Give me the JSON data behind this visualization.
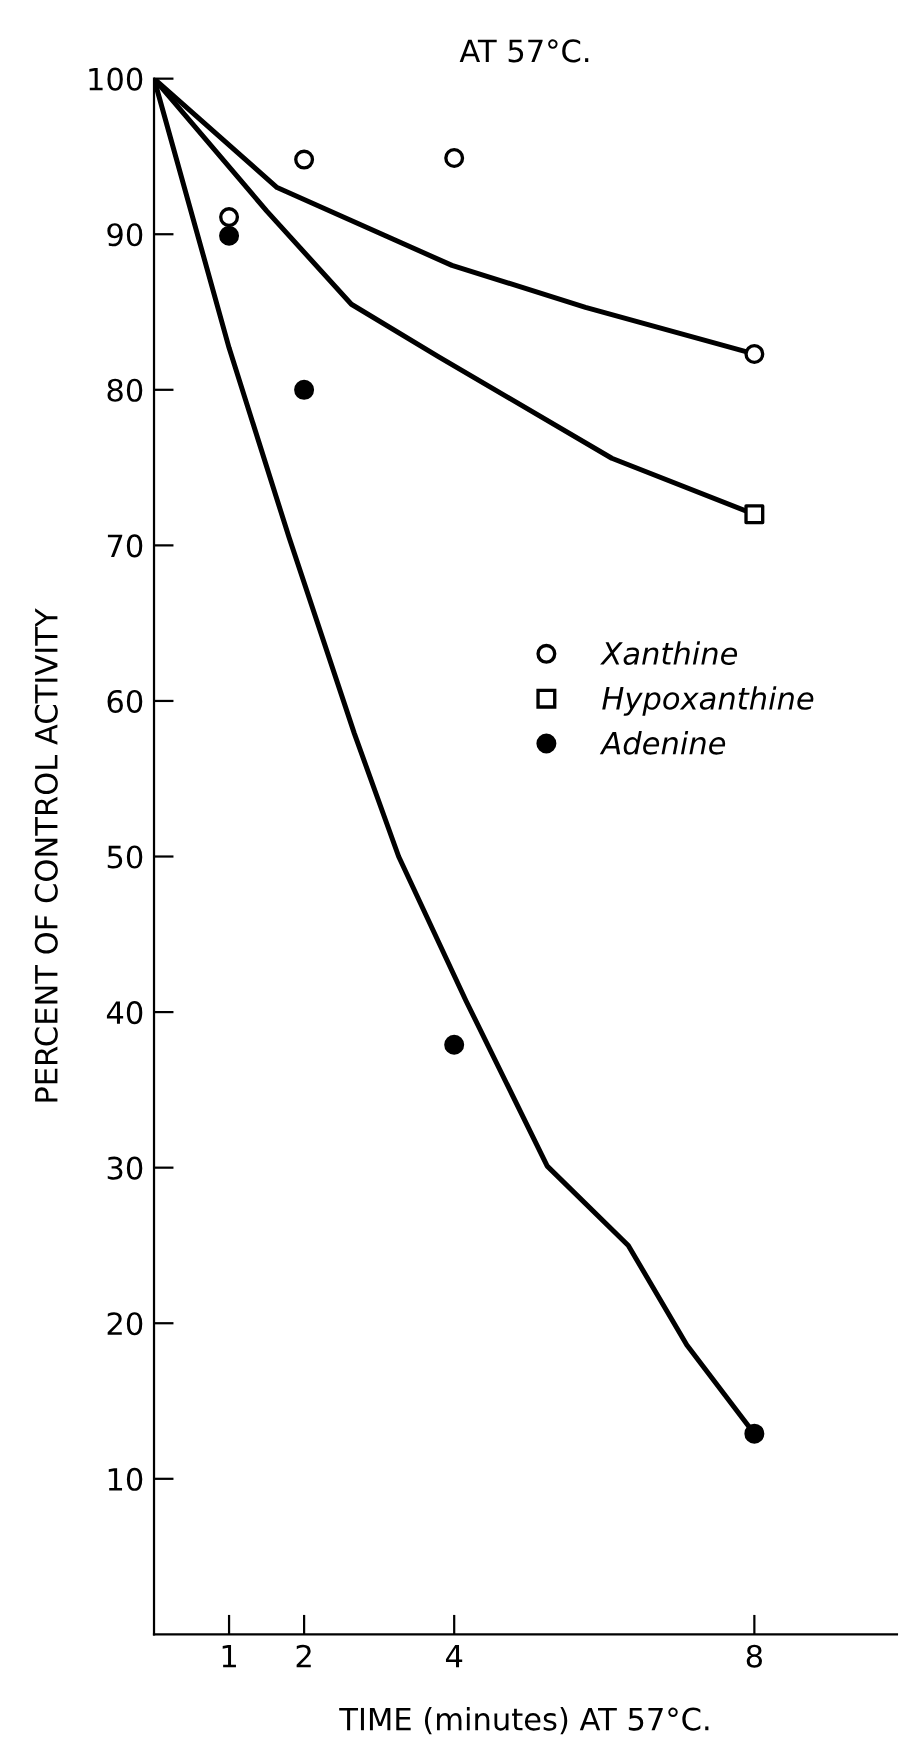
{
  "chart_data": {
    "type": "scatter",
    "title": "AT 57°C.",
    "xlabel": "TIME (minutes) AT 57°C.",
    "ylabel": "PERCENT OF CONTROL ACTIVITY",
    "xlim": [
      0,
      9.9
    ],
    "xticks": [
      1,
      2,
      4,
      8
    ],
    "ylim": [
      0,
      100
    ],
    "yticks": [
      10,
      20,
      30,
      40,
      50,
      60,
      70,
      80,
      90,
      100
    ],
    "grid": false,
    "legend": "right",
    "series": [
      {
        "name": "Xanthine",
        "marker": "circle",
        "color": "#ffffff",
        "x": [
          1,
          2,
          4,
          8
        ],
        "values": [
          91.1,
          94.8,
          94.9,
          82.3
        ]
      },
      {
        "name": "Hypoxanthine",
        "marker": "square",
        "color": "#ffffff",
        "x": [
          8
        ],
        "values": [
          72
        ]
      },
      {
        "name": "Adenine",
        "marker": "circle",
        "color": "#000000",
        "x": [
          1,
          2,
          4,
          8
        ],
        "values": [
          89.9,
          80,
          37.9,
          12.9
        ]
      },
      {
        "type": "line",
        "color": "#000000",
        "x": [
          0,
          1.64,
          3.97,
          5.75,
          8
        ],
        "values": [
          100,
          93.0,
          88.0,
          85.3,
          82.3
        ]
      },
      {
        "type": "line",
        "color": "#000000",
        "x": [
          0,
          1.5,
          2.63,
          3.8,
          6.1,
          8
        ],
        "values": [
          100,
          91.5,
          85.5,
          82.1,
          75.6,
          72
        ]
      },
      {
        "type": "line",
        "color": "#000000",
        "x": [
          0,
          1,
          1.8,
          2.67,
          3.26,
          4.16,
          5.24,
          6.32,
          7.1,
          8
        ],
        "values": [
          100,
          82.7,
          70.5,
          57.9,
          50,
          40.7,
          30.1,
          25.0,
          18.6,
          12.9
        ]
      }
    ]
  }
}
